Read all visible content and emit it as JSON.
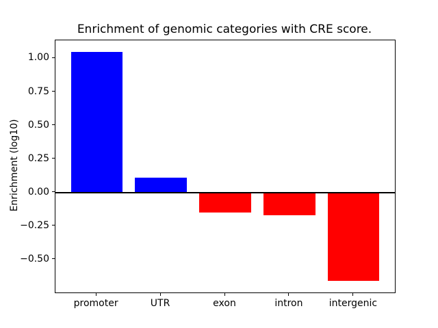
{
  "chart_data": {
    "type": "bar",
    "title": "Enrichment of genomic categories with CRE score.",
    "xlabel": "",
    "ylabel": "Enrichment (log10)",
    "categories": [
      "promoter",
      "UTR",
      "exon",
      "intron",
      "intergenic"
    ],
    "values": [
      1.05,
      0.11,
      -0.15,
      -0.17,
      -0.66
    ],
    "bar_colors": [
      "#0000ff",
      "#0000ff",
      "#ff0000",
      "#ff0000",
      "#ff0000"
    ],
    "positive_color": "#0000ff",
    "negative_color": "#ff0000",
    "bar_width": 0.8,
    "yticks": [
      1.0,
      0.75,
      0.5,
      0.25,
      0.0,
      -0.25,
      -0.5
    ],
    "ytick_labels": [
      "1.00",
      "0.75",
      "0.50",
      "0.25",
      "0.00",
      "−0.25",
      "−0.50"
    ],
    "ylim": [
      -0.745,
      1.135
    ],
    "xlim": [
      -0.64,
      4.64
    ],
    "grid": false,
    "legend": null,
    "zero_line": {
      "value": 0,
      "color": "#000000",
      "thickness_px": 2
    },
    "axis_color": "#000000",
    "background_color": "#ffffff"
  }
}
